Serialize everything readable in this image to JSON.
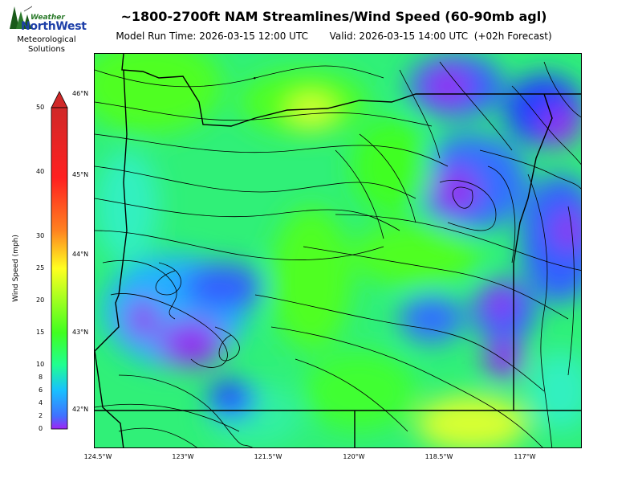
{
  "logo": {
    "line1": "Weather",
    "line2": "NorthWest",
    "line3": "Meteorological",
    "line4": "Solutions"
  },
  "title": "~1800-2700ft NAM Streamlines/Wind Speed (60-90mb agl)",
  "model_run": "Model Run Time: 2026-03-15 12:00 UTC",
  "valid": "Valid: 2026-03-15 14:00 UTC  (+02h Forecast)",
  "colorbar": {
    "label": "Wind Speed (mph)",
    "ticks": [
      "0",
      "2",
      "4",
      "6",
      "8",
      "10",
      "15",
      "20",
      "25",
      "30",
      "40",
      "50"
    ],
    "colors": [
      "#a024f4",
      "#4070ff",
      "#18c0ff",
      "#20ff90",
      "#40ff20",
      "#ffff20",
      "#ff8020",
      "#ff2020",
      "#d02828"
    ]
  },
  "lat_labels": [
    "46°N",
    "45°N",
    "44°N",
    "43°N",
    "42°N"
  ],
  "lon_labels": [
    "124.5°W",
    "123°W",
    "121.5°W",
    "120°W",
    "118.5°W",
    "117°W"
  ],
  "colors": {
    "border": "#000000",
    "streamline": "#000000"
  }
}
